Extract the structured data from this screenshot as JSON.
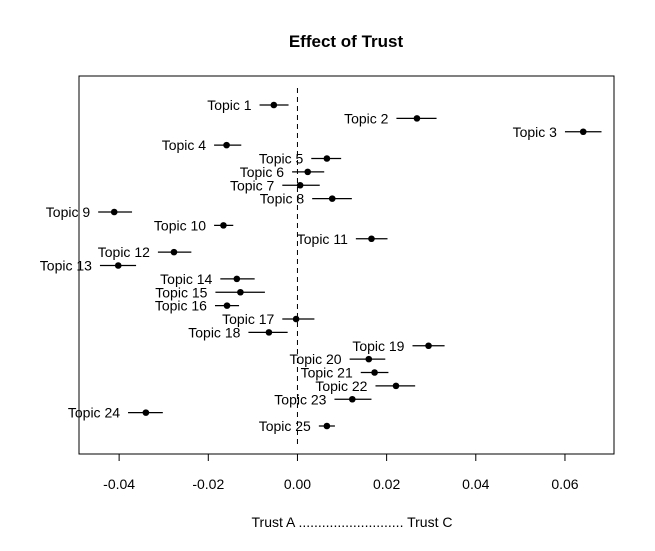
{
  "chart_data": {
    "type": "scatter",
    "title": "Effect of Trust",
    "xlabel": "Trust A ........................... Trust C",
    "ylabel": "",
    "xlim": [
      -0.049,
      0.071
    ],
    "x_ticks": [
      -0.04,
      -0.02,
      0.0,
      0.02,
      0.04,
      0.06
    ],
    "x_tick_labels": [
      "-0.04",
      "-0.02",
      "0.00",
      "0.02",
      "0.04",
      "0.06"
    ],
    "reference_line": {
      "x": 0.0,
      "style": "dashed"
    },
    "points": [
      {
        "label": "Topic 1",
        "estimate": -0.0053,
        "lower": -0.0085,
        "upper": -0.002
      },
      {
        "label": "Topic 2",
        "estimate": 0.0268,
        "lower": 0.0222,
        "upper": 0.0312
      },
      {
        "label": "Topic 3",
        "estimate": 0.0641,
        "lower": 0.06,
        "upper": 0.0682
      },
      {
        "label": "Topic 4",
        "estimate": -0.0159,
        "lower": -0.0187,
        "upper": -0.0126
      },
      {
        "label": "Topic 5",
        "estimate": 0.0066,
        "lower": 0.0031,
        "upper": 0.0098
      },
      {
        "label": "Topic 6",
        "estimate": 0.0023,
        "lower": -0.0012,
        "upper": 0.006
      },
      {
        "label": "Topic 7",
        "estimate": 0.0006,
        "lower": -0.0034,
        "upper": 0.005
      },
      {
        "label": "Topic 8",
        "estimate": 0.0078,
        "lower": 0.0033,
        "upper": 0.0122
      },
      {
        "label": "Topic 9",
        "estimate": -0.0411,
        "lower": -0.0447,
        "upper": -0.0371
      },
      {
        "label": "Topic 10",
        "estimate": -0.0166,
        "lower": -0.0187,
        "upper": -0.0144
      },
      {
        "label": "Topic 11",
        "estimate": 0.0166,
        "lower": 0.0131,
        "upper": 0.0202
      },
      {
        "label": "Topic 12",
        "estimate": -0.0277,
        "lower": -0.0313,
        "upper": -0.0238
      },
      {
        "label": "Topic 13",
        "estimate": -0.0402,
        "lower": -0.0443,
        "upper": -0.0362
      },
      {
        "label": "Topic 14",
        "estimate": -0.0136,
        "lower": -0.0173,
        "upper": -0.0096
      },
      {
        "label": "Topic 15",
        "estimate": -0.0128,
        "lower": -0.0184,
        "upper": -0.0073
      },
      {
        "label": "Topic 16",
        "estimate": -0.0158,
        "lower": -0.0185,
        "upper": -0.0131
      },
      {
        "label": "Topic 17",
        "estimate": -0.0003,
        "lower": -0.0034,
        "upper": 0.0038
      },
      {
        "label": "Topic 18",
        "estimate": -0.0064,
        "lower": -0.011,
        "upper": -0.0022
      },
      {
        "label": "Topic 19",
        "estimate": 0.0294,
        "lower": 0.0258,
        "upper": 0.033
      },
      {
        "label": "Topic 20",
        "estimate": 0.016,
        "lower": 0.0117,
        "upper": 0.0197
      },
      {
        "label": "Topic 21",
        "estimate": 0.0173,
        "lower": 0.0142,
        "upper": 0.0204
      },
      {
        "label": "Topic 22",
        "estimate": 0.0221,
        "lower": 0.0175,
        "upper": 0.0264
      },
      {
        "label": "Topic 23",
        "estimate": 0.0123,
        "lower": 0.0083,
        "upper": 0.0166
      },
      {
        "label": "Topic 24",
        "estimate": -0.034,
        "lower": -0.038,
        "upper": -0.0302
      },
      {
        "label": "Topic 25",
        "estimate": 0.0066,
        "lower": 0.0048,
        "upper": 0.0084
      }
    ],
    "grid": false,
    "legend": "none",
    "colors": {
      "point": "#000000",
      "line": "#000000",
      "axis": "#000000"
    }
  }
}
